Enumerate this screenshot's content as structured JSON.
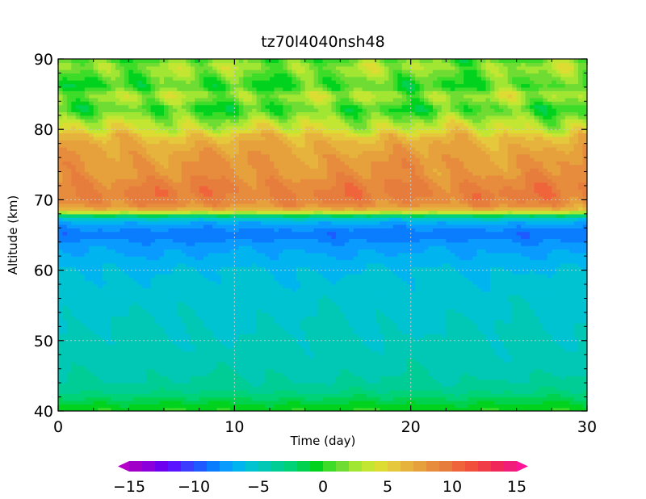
{
  "chart_data": {
    "type": "heatmap",
    "title": "tz70l4040nsh48",
    "xlabel": "Time (day)",
    "ylabel": "Altitude (km)",
    "xlim": [
      0,
      30
    ],
    "ylim": [
      40,
      90
    ],
    "x_ticks": [
      0,
      10,
      20,
      30
    ],
    "y_ticks": [
      40,
      50,
      60,
      70,
      80,
      90
    ],
    "x_tick_labels": [
      "0",
      "10",
      "20",
      "30"
    ],
    "y_tick_labels": [
      "40",
      "50",
      "60",
      "70",
      "80",
      "90"
    ],
    "grid": "dotted",
    "colorbar": {
      "orientation": "horizontal",
      "placement": "bottom",
      "range": [
        -15,
        15
      ],
      "step": 1,
      "tick_values": [
        -15,
        -10,
        -5,
        0,
        5,
        10,
        15
      ],
      "tick_labels": [
        "−15",
        "−10",
        "−5",
        "0",
        "5",
        "10",
        "15"
      ],
      "extend": "both",
      "colors": [
        "#a000c8",
        "#8c00dc",
        "#6e00f0",
        "#5a14ff",
        "#3c3cff",
        "#1e5aff",
        "#0a7dff",
        "#0a9bff",
        "#00b4f0",
        "#00c3d2",
        "#00c8b4",
        "#00cd96",
        "#00d278",
        "#00d250",
        "#00d21e",
        "#3cdc28",
        "#6edc32",
        "#a0e632",
        "#c3e632",
        "#dcdc32",
        "#e6c83c",
        "#e6b43c",
        "#e6a03c",
        "#e68c3c",
        "#e67d3c",
        "#f0643c",
        "#f0503c",
        "#f03c46",
        "#f0285a",
        "#f01e78"
      ],
      "under_color": "#b400c8",
      "over_color": "#ff1496"
    },
    "altitude_km": [
      40,
      41,
      42,
      43,
      44,
      46,
      48,
      50,
      52,
      54,
      56,
      58,
      60,
      62,
      63,
      64,
      65,
      66,
      67,
      67.6,
      68,
      68.5,
      69,
      70,
      71,
      72,
      73,
      74,
      75,
      76,
      77,
      78,
      79,
      80,
      81,
      82,
      83,
      84,
      85,
      86,
      87,
      88,
      89,
      90
    ],
    "mean_values_by_altitude": [
      0.0,
      -0.8,
      -2.2,
      -3.2,
      -3.8,
      -4.3,
      -4.6,
      -4.8,
      -5.0,
      -5.2,
      -5.4,
      -5.7,
      -6.0,
      -6.8,
      -7.2,
      -7.8,
      -8.8,
      -8.0,
      -6.5,
      -4.0,
      1.0,
      5.5,
      8.0,
      9.0,
      9.3,
      9.0,
      8.5,
      8.0,
      8.0,
      7.7,
      7.3,
      6.8,
      6.0,
      4.0,
      3.2,
      1.5,
      0.2,
      1.8,
      2.8,
      0.3,
      0.8,
      1.8,
      2.6,
      0.8
    ]
  }
}
